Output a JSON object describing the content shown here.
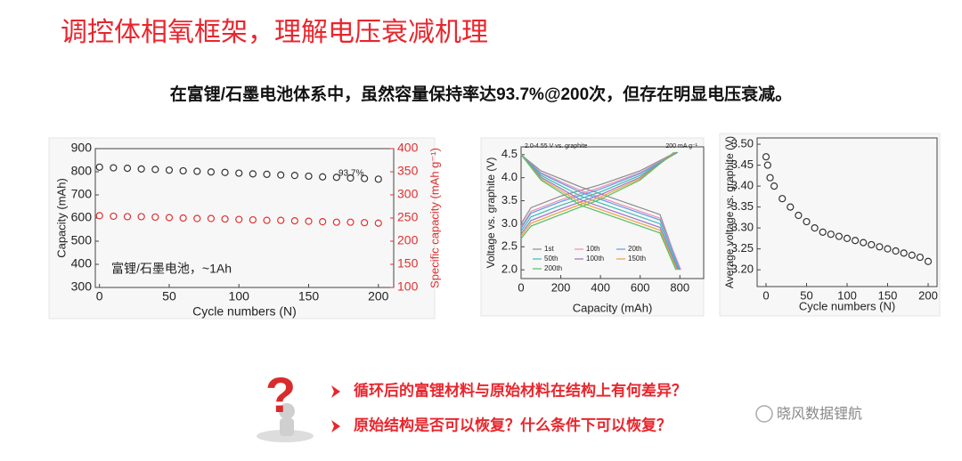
{
  "slide": {
    "title": "调控体相氧框架，理解电压衰减机理",
    "subtitle": "在富锂/石墨电池体系中，虽然容量保持率达93.7%@200次，但存在明显电压衰减。",
    "questions": [
      "循环后的富锂材料与原始材料在结构上有何差异？",
      "原始结构是否可以恢复？什么条件下可以恢复？"
    ],
    "watermark": "晓风数据锂航"
  },
  "chart_data": [
    {
      "type": "scatter",
      "x_label": "Cycle numbers (N)",
      "y_label": "Capacity (mAh)",
      "y2_label": "Specific capacity (mAh g⁻¹)",
      "annotations": [
        "93.7%",
        "富锂/石墨电池，~1Ah"
      ],
      "x": [
        0,
        10,
        20,
        30,
        40,
        50,
        60,
        70,
        80,
        90,
        100,
        110,
        120,
        130,
        140,
        150,
        160,
        170,
        180,
        190,
        200
      ],
      "series": [
        {
          "color": "#333333",
          "values": [
            820,
            817,
            815,
            812,
            810,
            807,
            804,
            802,
            799,
            797,
            794,
            791,
            789,
            786,
            784,
            781,
            778,
            776,
            773,
            771,
            768
          ]
        },
        {
          "color": "#e03030",
          "axis": "y2",
          "values": [
            255,
            254,
            253,
            253,
            252,
            251,
            250,
            249,
            249,
            248,
            247,
            246,
            245,
            245,
            244,
            243,
            242,
            241,
            241,
            240,
            239
          ]
        }
      ],
      "xlim": [
        -3,
        211
      ],
      "xticks": [
        0,
        50,
        100,
        150,
        200
      ],
      "ylim": [
        300,
        900
      ],
      "yticks": [
        300,
        400,
        500,
        600,
        700,
        800,
        900
      ],
      "y2lim": [
        100,
        400
      ],
      "y2ticks": [
        100,
        150,
        200,
        250,
        300,
        350,
        400
      ],
      "y2_color": "#e03030"
    },
    {
      "type": "line",
      "x_label": "Capacity (mAh)",
      "y_label": "Voltage vs. graphite (V)",
      "annotations": [
        "2.0-4.55 V vs. graphite",
        "200 mA g⁻¹"
      ],
      "legend": "lower left",
      "series": [
        {
          "name": "1st",
          "color": "#8c8c8c",
          "x": [
            0,
            50,
            200,
            400,
            600,
            780,
            null,
            0,
            100,
            300,
            500,
            700,
            800
          ],
          "values": [
            3.0,
            3.35,
            3.6,
            3.85,
            4.15,
            4.55,
            null,
            4.5,
            4.15,
            3.8,
            3.5,
            3.2,
            2.0
          ]
        },
        {
          "name": "10th",
          "color": "#f08cb4",
          "x": [
            0,
            50,
            200,
            400,
            600,
            785,
            null,
            0,
            100,
            300,
            500,
            700,
            805
          ],
          "values": [
            2.94,
            3.27,
            3.52,
            3.79,
            4.11,
            4.55,
            null,
            4.5,
            4.11,
            3.72,
            3.42,
            3.12,
            2.0
          ]
        },
        {
          "name": "20th",
          "color": "#5aa0e6",
          "x": [
            0,
            50,
            200,
            400,
            600,
            790,
            null,
            0,
            100,
            300,
            500,
            700,
            800
          ],
          "values": [
            2.9,
            3.23,
            3.48,
            3.75,
            4.09,
            4.55,
            null,
            4.5,
            4.09,
            3.68,
            3.38,
            3.08,
            2.0
          ]
        },
        {
          "name": "50th",
          "color": "#3cbcb0",
          "x": [
            0,
            50,
            200,
            400,
            600,
            785,
            null,
            0,
            100,
            300,
            500,
            700,
            795
          ],
          "values": [
            2.84,
            3.15,
            3.4,
            3.69,
            4.05,
            4.55,
            null,
            4.5,
            4.05,
            3.6,
            3.3,
            3.0,
            2.0
          ]
        },
        {
          "name": "100th",
          "color": "#a070c8",
          "x": [
            0,
            50,
            200,
            400,
            600,
            780,
            null,
            0,
            100,
            300,
            500,
            700,
            790
          ],
          "values": [
            2.78,
            3.07,
            3.32,
            3.63,
            4.01,
            4.55,
            null,
            4.5,
            4.01,
            3.52,
            3.22,
            2.92,
            2.0
          ]
        },
        {
          "name": "150th",
          "color": "#f0a040",
          "x": [
            0,
            50,
            200,
            400,
            600,
            775,
            null,
            0,
            100,
            300,
            500,
            700,
            785
          ],
          "values": [
            2.73,
            3.01,
            3.26,
            3.58,
            3.98,
            4.55,
            null,
            4.5,
            3.98,
            3.46,
            3.16,
            2.86,
            2.0
          ]
        },
        {
          "name": "200th",
          "color": "#50c060",
          "x": [
            0,
            50,
            200,
            400,
            600,
            770,
            null,
            0,
            100,
            300,
            500,
            700,
            780
          ],
          "values": [
            2.68,
            2.95,
            3.2,
            3.53,
            3.95,
            4.55,
            null,
            4.5,
            3.95,
            3.4,
            3.1,
            2.8,
            2.0
          ]
        }
      ],
      "xlim": [
        0,
        920
      ],
      "xticks": [
        0,
        200,
        400,
        600,
        800
      ],
      "ylim": [
        1.81,
        4.67
      ],
      "yticks": [
        {
          "value": 2,
          "label": "2.0"
        },
        2.5,
        {
          "value": 3,
          "label": "3.0"
        },
        3.5,
        {
          "value": 4,
          "label": "4.0"
        },
        4.5
      ]
    },
    {
      "type": "scatter",
      "x_label": "Cycle numbers (N)",
      "y_label": "Average voltage vs. graphite (V)",
      "x": [
        0,
        2,
        5,
        10,
        20,
        30,
        40,
        50,
        60,
        70,
        80,
        90,
        100,
        110,
        120,
        130,
        140,
        150,
        160,
        170,
        180,
        190,
        200
      ],
      "series": [
        {
          "color": "#333333",
          "values": [
            3.47,
            3.45,
            3.42,
            3.4,
            3.37,
            3.35,
            3.33,
            3.315,
            3.3,
            3.29,
            3.285,
            3.28,
            3.275,
            3.27,
            3.265,
            3.26,
            3.255,
            3.25,
            3.245,
            3.24,
            3.235,
            3.23,
            3.22
          ]
        }
      ],
      "xlim": [
        -11,
        211
      ],
      "xticks": [
        0,
        50,
        100,
        150,
        200
      ],
      "ylim": [
        3.16,
        3.515
      ],
      "yticks": [
        {
          "value": 3.2,
          "label": "3.20"
        },
        3.25,
        {
          "value": 3.3,
          "label": "3.30"
        },
        3.35,
        {
          "value": 3.4,
          "label": "3.40"
        },
        3.45,
        {
          "value": 3.5,
          "label": "3.50"
        }
      ]
    }
  ]
}
